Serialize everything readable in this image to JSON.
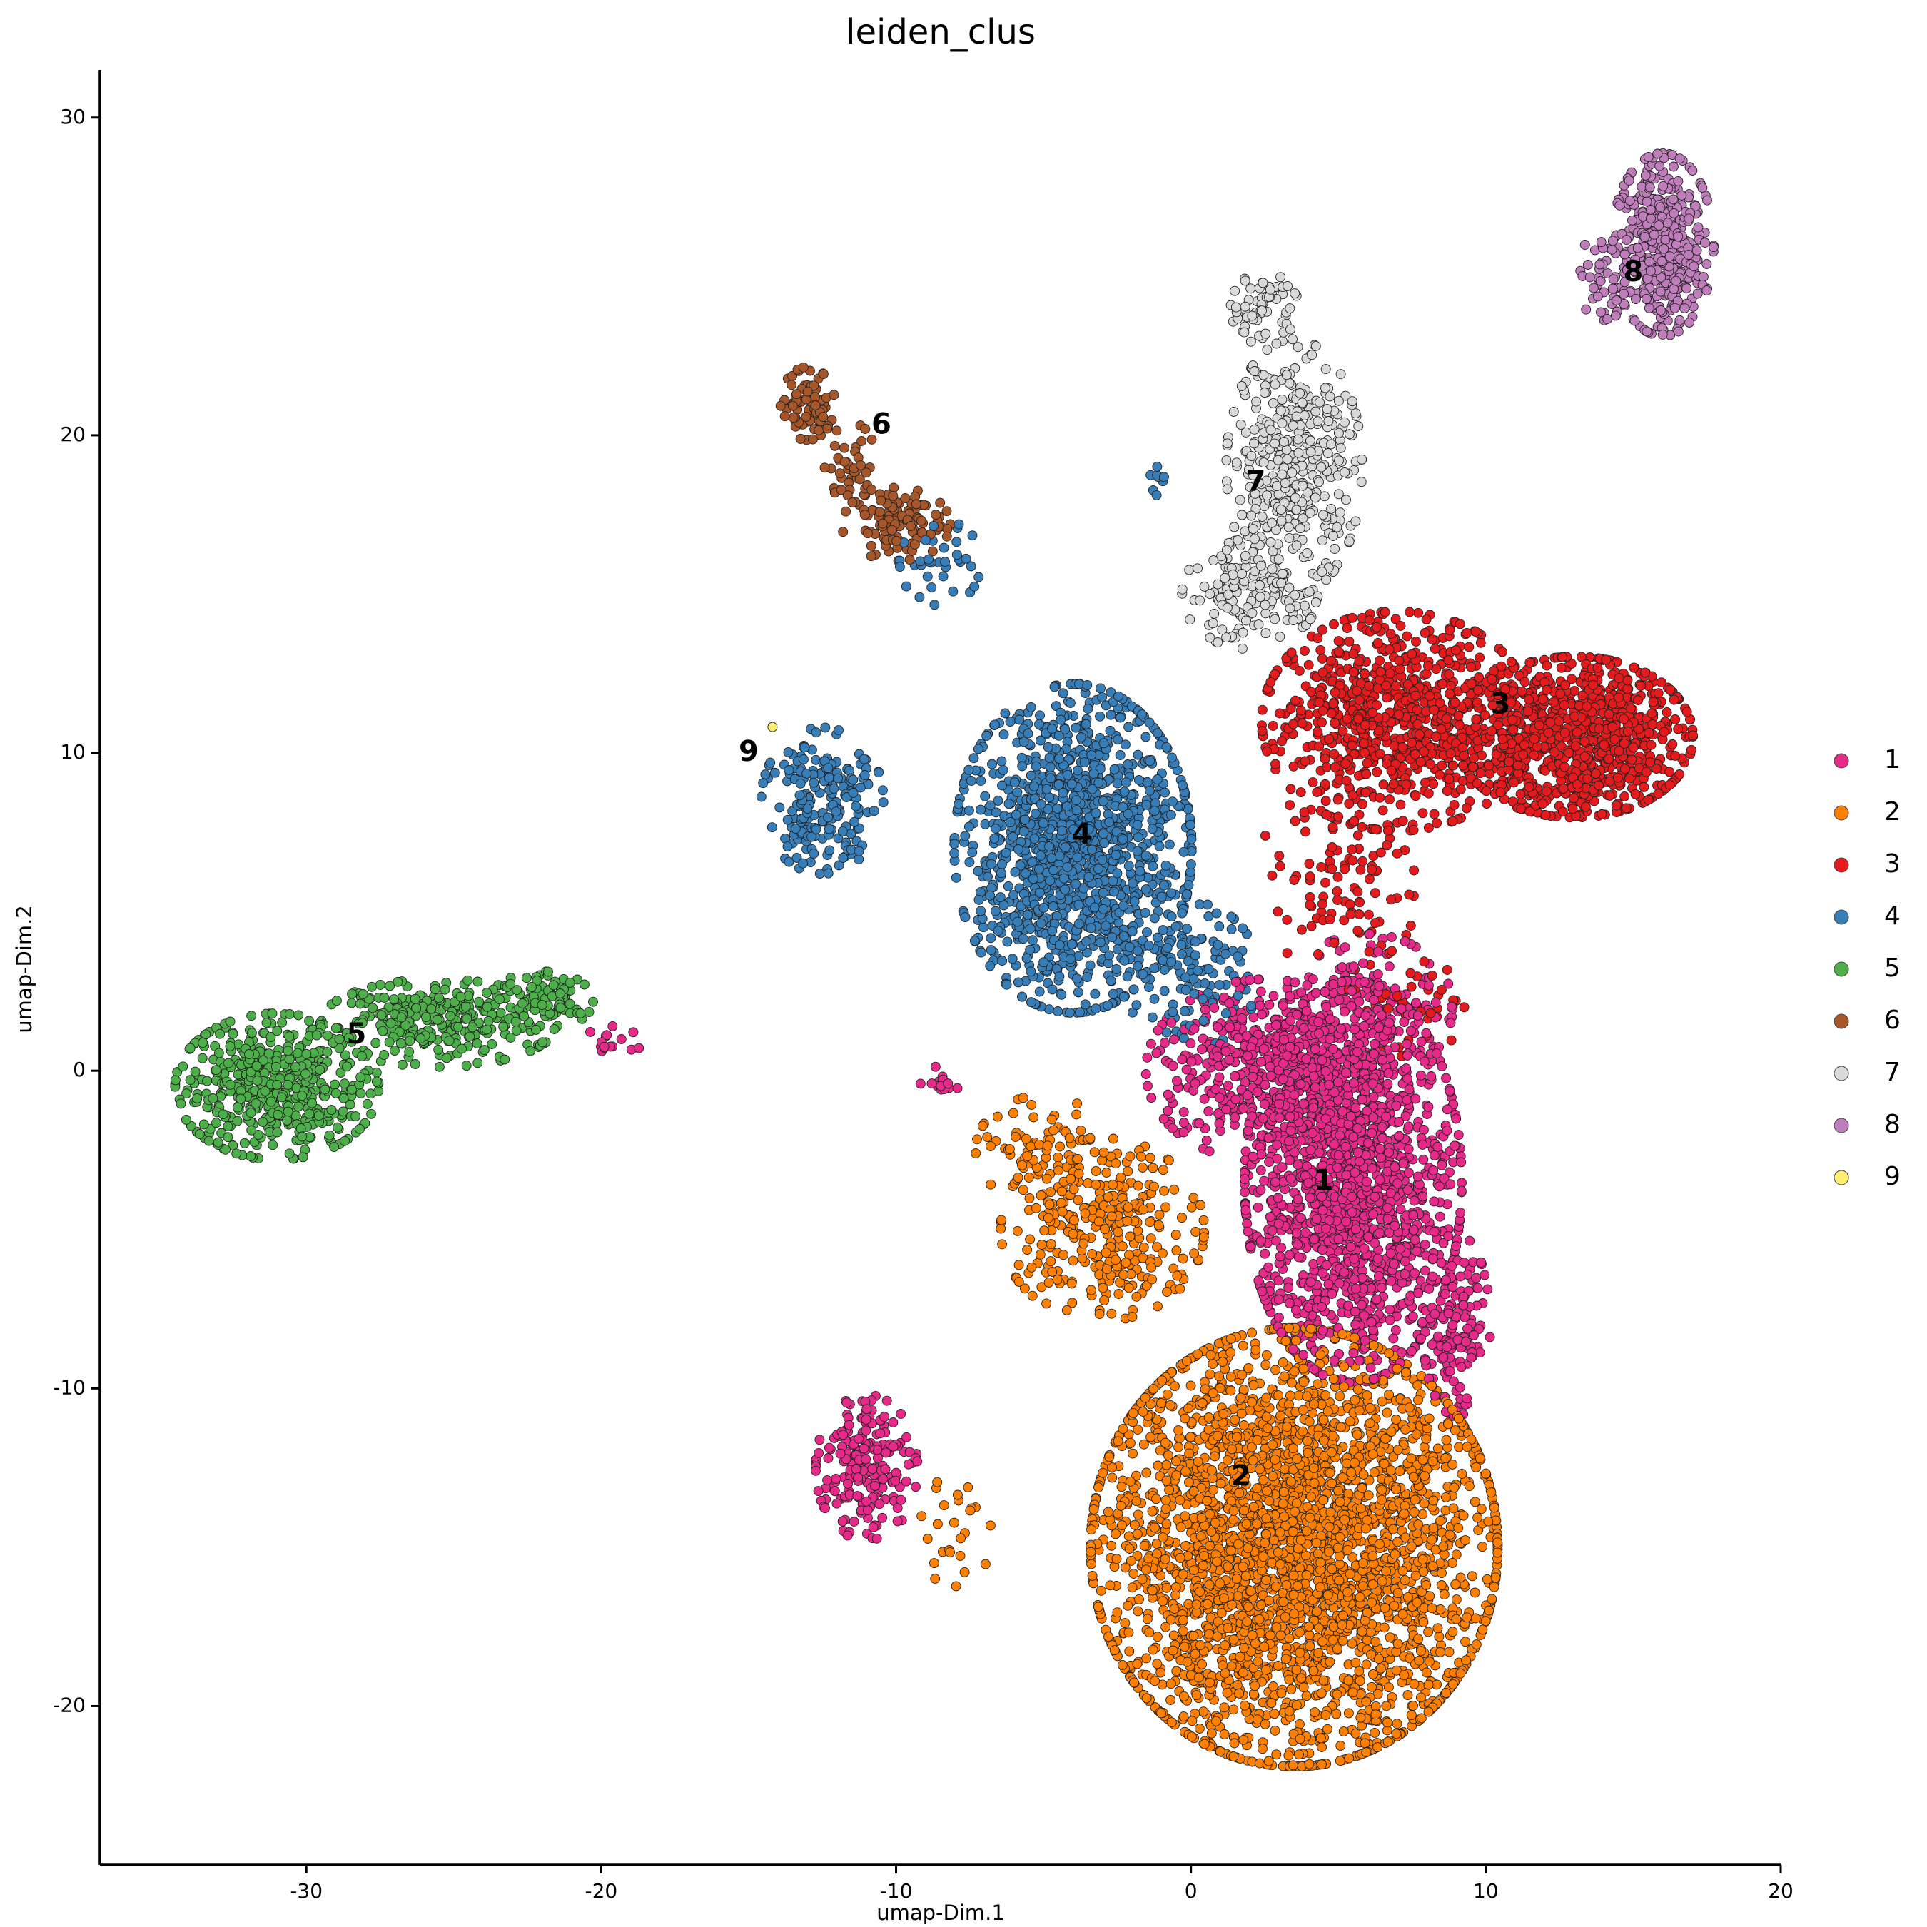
{
  "chart_data": {
    "type": "scatter",
    "title": "leiden_clus",
    "xlabel": "umap-Dim.1",
    "ylabel": "umap-Dim.2",
    "xlim": [
      -37,
      20
    ],
    "ylim": [
      -25,
      31.5
    ],
    "xticks": [
      {
        "value": -30,
        "label": "-30"
      },
      {
        "value": -20,
        "label": "-20"
      },
      {
        "value": -10,
        "label": "-10"
      },
      {
        "value": 0,
        "label": "0"
      },
      {
        "value": 10,
        "label": "10"
      },
      {
        "value": 20,
        "label": "20"
      }
    ],
    "yticks": [
      {
        "value": -20,
        "label": "-20"
      },
      {
        "value": -10,
        "label": "-10"
      },
      {
        "value": 0,
        "label": "0"
      },
      {
        "value": 10,
        "label": "10"
      },
      {
        "value": 20,
        "label": "20"
      },
      {
        "value": 30,
        "label": "30"
      }
    ],
    "grid": false,
    "legend_position": "right",
    "series": [
      {
        "name": "1",
        "color": "#E7298A",
        "label_pos": [
          4.5,
          -3.5
        ],
        "regions": [
          [
            5.5,
            -3.5,
            3.2,
            5.5,
            1600
          ],
          [
            2.5,
            0,
            3.5,
            2.5,
            500
          ],
          [
            -11,
            -12.5,
            1.5,
            2,
            200
          ],
          [
            6,
            2,
            2.5,
            2,
            150
          ],
          [
            -8.5,
            -0.3,
            0.6,
            0.4,
            15
          ],
          [
            -19.5,
            1,
            0.8,
            0.6,
            15
          ],
          [
            9,
            -8,
            1,
            2.5,
            150
          ]
        ]
      },
      {
        "name": "2",
        "color": "#FF7F00",
        "label_pos": [
          1.7,
          -12.8
        ],
        "regions": [
          [
            3.5,
            -15,
            6,
            6,
            3200
          ],
          [
            -3,
            -5,
            3,
            2.5,
            300
          ],
          [
            -5,
            -2.5,
            2,
            1.5,
            80
          ],
          [
            -8,
            -14.5,
            1.2,
            1.5,
            25
          ]
        ]
      },
      {
        "name": "3",
        "color": "#E41A1C",
        "label_pos": [
          10.5,
          11.5
        ],
        "regions": [
          [
            13,
            10.5,
            3.5,
            2.2,
            900
          ],
          [
            7,
            11,
            4,
            3,
            800
          ],
          [
            5,
            6,
            2.5,
            2.5,
            100
          ],
          [
            7,
            2,
            2,
            1.5,
            40
          ]
        ]
      },
      {
        "name": "4",
        "color": "#377EB8",
        "label_pos": [
          -3.7,
          7.4
        ],
        "regions": [
          [
            -4,
            7,
            3.5,
            4.5,
            1300
          ],
          [
            -12.5,
            8.5,
            1.8,
            2,
            200
          ],
          [
            -8.5,
            16,
            1.2,
            1.2,
            35
          ],
          [
            0,
            3,
            2,
            2,
            120
          ],
          [
            -1,
            18.5,
            0.5,
            0.5,
            8
          ]
        ]
      },
      {
        "name": "5",
        "color": "#4DAF4A",
        "label_pos": [
          -28.3,
          1.1
        ],
        "regions": [
          [
            -31,
            -0.5,
            3,
            2,
            500
          ],
          [
            -25.5,
            1.5,
            3.5,
            1.2,
            300
          ],
          [
            -22,
            2.2,
            1.5,
            0.8,
            80
          ]
        ]
      },
      {
        "name": "6",
        "color": "#A65628",
        "label_pos": [
          -10.5,
          20.3
        ],
        "regions": [
          [
            -13,
            21,
            0.8,
            1,
            80
          ],
          [
            -10,
            17.2,
            1.6,
            1,
            120
          ],
          [
            -11.5,
            19,
            0.8,
            1.2,
            40
          ]
        ]
      },
      {
        "name": "7",
        "color": "#D9D9D9",
        "label_pos": [
          2.2,
          18.5
        ],
        "regions": [
          [
            3.5,
            19,
            2,
            3.5,
            400
          ],
          [
            2.5,
            24,
            1,
            1,
            60
          ],
          [
            2,
            15,
            2,
            1.5,
            150
          ]
        ]
      },
      {
        "name": "8",
        "color": "#C07DBB",
        "label_pos": [
          15,
          25.1
        ],
        "regions": [
          [
            16,
            26,
            1.5,
            2.5,
            400
          ],
          [
            14,
            25,
            0.8,
            1.2,
            40
          ]
        ]
      },
      {
        "name": "9",
        "color": "#FFED6F",
        "label_pos": [
          -15,
          10
        ],
        "regions": [
          [
            -14.2,
            10.8,
            0.05,
            0.05,
            1
          ]
        ]
      }
    ]
  }
}
